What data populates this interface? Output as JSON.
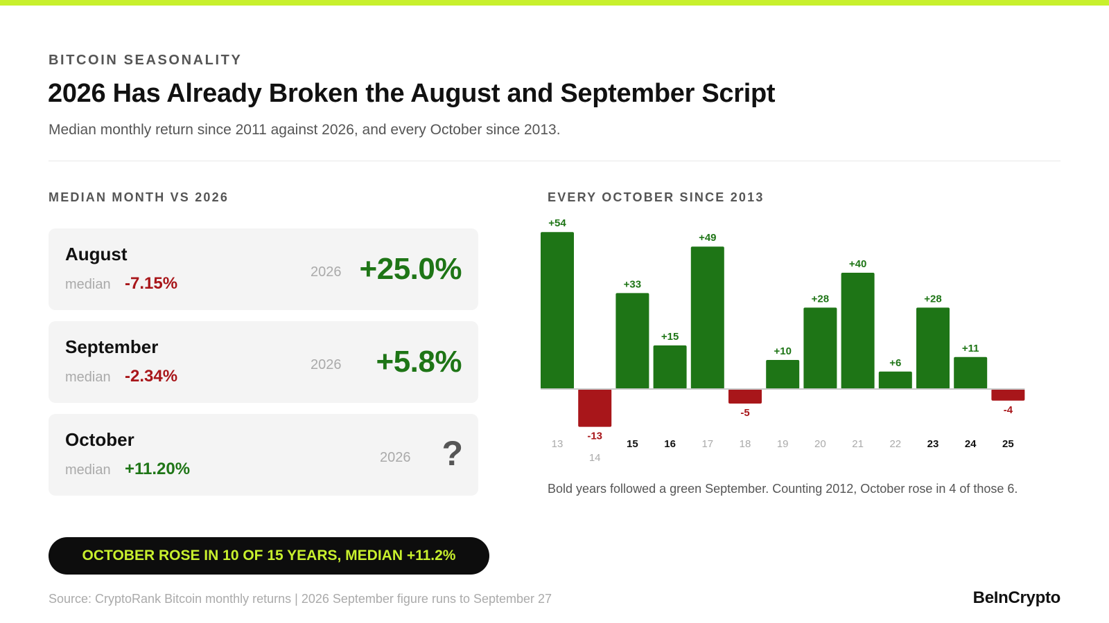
{
  "eyebrow": "BITCOIN SEASONALITY",
  "title": "2026 Has Already Broken the August and September Script",
  "subtitle": "Median monthly return since 2011 against 2026, and every October since 2013.",
  "left_section_label": "MEDIAN MONTH VS 2026",
  "right_section_label": "EVERY OCTOBER SINCE 2013",
  "cards": [
    {
      "month": "August",
      "median_label": "median",
      "median_value": "-7.15%",
      "year_label": "2026",
      "value_2026": "+25.0%"
    },
    {
      "month": "September",
      "median_label": "median",
      "median_value": "-2.34%",
      "year_label": "2026",
      "value_2026": "+5.8%"
    },
    {
      "month": "October",
      "median_label": "median",
      "median_value": "+11.20%",
      "year_label": "2026",
      "value_2026": "?"
    }
  ],
  "pill_text": "OCTOBER ROSE IN 10 OF 15 YEARS, MEDIAN +11.2%",
  "chart_note": "Bold years followed a green September. Counting 2012, October rose in 4 of those 6.",
  "source": "Source: CryptoRank Bitcoin monthly returns  |  2026 September figure runs to September 27",
  "brand": "BeInCrypto",
  "colors": {
    "positive": "#1e7516",
    "negative": "#a8161a",
    "accent": "#c8f02d",
    "muted_label": "#aaaaaa",
    "bold_label": "#111111"
  },
  "chart_data": {
    "type": "bar",
    "title": "EVERY OCTOBER SINCE 2013",
    "categories": [
      "13",
      "14",
      "15",
      "16",
      "17",
      "18",
      "19",
      "20",
      "21",
      "22",
      "23",
      "24",
      "25"
    ],
    "values": [
      54,
      -13,
      33,
      15,
      49,
      -5,
      10,
      28,
      40,
      6,
      28,
      11,
      -4
    ],
    "data_labels": [
      "+54",
      "-13",
      "+33",
      "+15",
      "+49",
      "-5",
      "+10",
      "+28",
      "+40",
      "+6",
      "+28",
      "+11",
      "-4"
    ],
    "bold_categories": [
      "15",
      "16",
      "23",
      "24",
      "25"
    ],
    "xlabel": "",
    "ylabel": "",
    "grid": false,
    "legend": "none"
  }
}
